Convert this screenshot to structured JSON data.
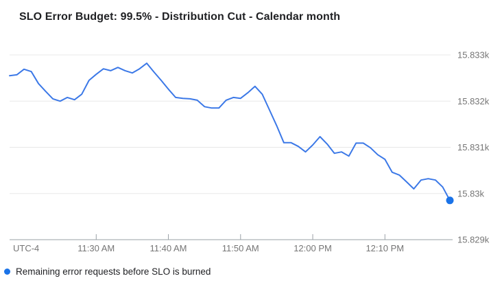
{
  "colors": {
    "line": "#3b78e7",
    "dot": "#1a73e8",
    "grid": "#e8e8e8",
    "axis": "#9aa0a6",
    "muted_text": "#757575",
    "title_text": "#202124"
  },
  "legend": {
    "marker_icon": "filled-circle"
  },
  "chart_data": {
    "type": "line",
    "title": "SLO Error Budget: 99.5% - Distribution Cut - Calendar month",
    "timezone_label": "UTC-4",
    "xlabel": "",
    "ylabel": "",
    "grid": "horizontal",
    "legend_position": "bottom-left",
    "end_point_marker": true,
    "ylim": [
      15829,
      15833
    ],
    "y_ticks": [
      {
        "value": 15833,
        "label": "15.833k"
      },
      {
        "value": 15832,
        "label": "15.832k"
      },
      {
        "value": 15831,
        "label": "15.831k"
      },
      {
        "value": 15830,
        "label": "15.83k"
      },
      {
        "value": 15829,
        "label": "15.829k"
      }
    ],
    "x_ticks": [
      "11:30 AM",
      "11:40 AM",
      "11:50 AM",
      "12:00 PM",
      "12:10 PM"
    ],
    "x": [
      "11:18 AM",
      "11:19 AM",
      "11:20 AM",
      "11:21 AM",
      "11:22 AM",
      "11:23 AM",
      "11:24 AM",
      "11:25 AM",
      "11:26 AM",
      "11:27 AM",
      "11:28 AM",
      "11:29 AM",
      "11:30 AM",
      "11:31 AM",
      "11:32 AM",
      "11:33 AM",
      "11:34 AM",
      "11:35 AM",
      "11:36 AM",
      "11:37 AM",
      "11:38 AM",
      "11:39 AM",
      "11:40 AM",
      "11:41 AM",
      "11:42 AM",
      "11:43 AM",
      "11:44 AM",
      "11:45 AM",
      "11:46 AM",
      "11:47 AM",
      "11:48 AM",
      "11:49 AM",
      "11:50 AM",
      "11:51 AM",
      "11:52 AM",
      "11:53 AM",
      "11:54 AM",
      "11:55 AM",
      "11:56 AM",
      "11:57 AM",
      "11:58 AM",
      "11:59 AM",
      "12:00 PM",
      "12:01 PM",
      "12:02 PM",
      "12:03 PM",
      "12:04 PM",
      "12:05 PM",
      "12:06 PM",
      "12:07 PM",
      "12:08 PM",
      "12:09 PM",
      "12:10 PM",
      "12:11 PM",
      "12:12 PM",
      "12:13 PM",
      "12:14 PM",
      "12:15 PM",
      "12:16 PM",
      "12:17 PM",
      "12:18 PM",
      "12:19 PM"
    ],
    "series": [
      {
        "name": "Remaining error requests before SLO is burned",
        "values": [
          15832.55,
          15832.57,
          15832.69,
          15832.64,
          15832.38,
          15832.21,
          15832.05,
          15832.0,
          15832.08,
          15832.03,
          15832.15,
          15832.45,
          15832.58,
          15832.7,
          15832.66,
          15832.73,
          15832.66,
          15832.61,
          15832.7,
          15832.82,
          15832.63,
          15832.45,
          15832.26,
          15832.08,
          15832.06,
          15832.05,
          15832.02,
          15831.88,
          15831.85,
          15831.85,
          15832.02,
          15832.08,
          15832.06,
          15832.18,
          15832.32,
          15832.15,
          15831.81,
          15831.47,
          15831.1,
          15831.1,
          15831.02,
          15830.9,
          15831.05,
          15831.23,
          15831.07,
          15830.87,
          15830.9,
          15830.81,
          15831.09,
          15831.09,
          15830.99,
          15830.84,
          15830.74,
          15830.46,
          15830.4,
          15830.25,
          15830.1,
          15830.29,
          15830.32,
          15830.29,
          15830.14,
          15829.85
        ]
      }
    ]
  }
}
